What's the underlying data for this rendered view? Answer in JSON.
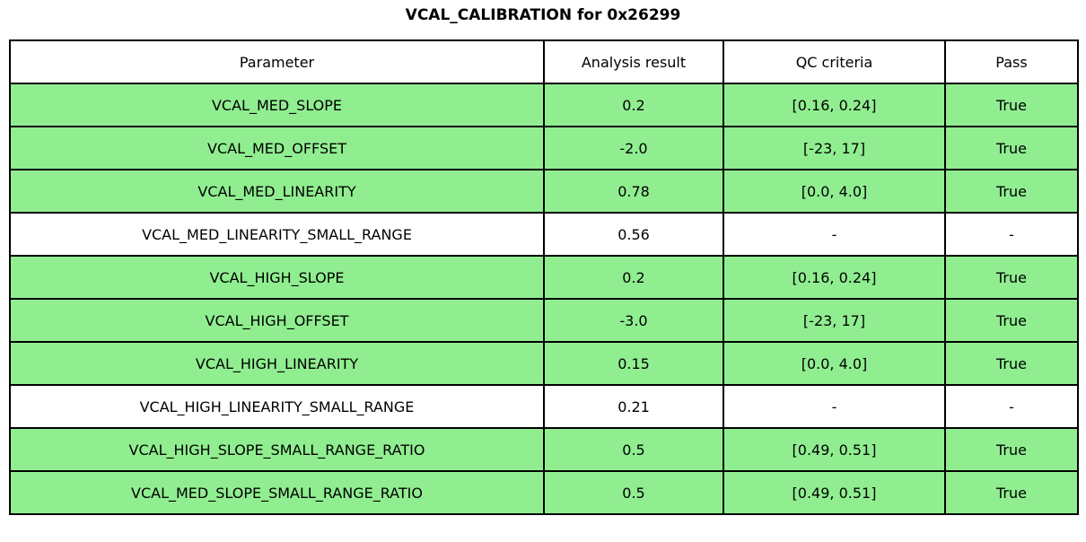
{
  "title": "VCAL_CALIBRATION for 0x26299",
  "colors": {
    "pass_row_green": "#90EE90",
    "neutral_row_white": "#FFFFFF",
    "grid_line": "#000000",
    "text": "#000000"
  },
  "chart_data": {
    "type": "table",
    "title": "VCAL_CALIBRATION for 0x26299",
    "columns": [
      "Parameter",
      "Analysis result",
      "QC criteria",
      "Pass"
    ],
    "rows": [
      {
        "parameter": "VCAL_MED_SLOPE",
        "analysis_result": "0.2",
        "qc_criteria": "[0.16, 0.24]",
        "pass": "True",
        "highlight": true
      },
      {
        "parameter": "VCAL_MED_OFFSET",
        "analysis_result": "-2.0",
        "qc_criteria": "[-23, 17]",
        "pass": "True",
        "highlight": true
      },
      {
        "parameter": "VCAL_MED_LINEARITY",
        "analysis_result": "0.78",
        "qc_criteria": "[0.0, 4.0]",
        "pass": "True",
        "highlight": true
      },
      {
        "parameter": "VCAL_MED_LINEARITY_SMALL_RANGE",
        "analysis_result": "0.56",
        "qc_criteria": "-",
        "pass": "-",
        "highlight": false
      },
      {
        "parameter": "VCAL_HIGH_SLOPE",
        "analysis_result": "0.2",
        "qc_criteria": "[0.16, 0.24]",
        "pass": "True",
        "highlight": true
      },
      {
        "parameter": "VCAL_HIGH_OFFSET",
        "analysis_result": "-3.0",
        "qc_criteria": "[-23, 17]",
        "pass": "True",
        "highlight": true
      },
      {
        "parameter": "VCAL_HIGH_LINEARITY",
        "analysis_result": "0.15",
        "qc_criteria": "[0.0, 4.0]",
        "pass": "True",
        "highlight": true
      },
      {
        "parameter": "VCAL_HIGH_LINEARITY_SMALL_RANGE",
        "analysis_result": "0.21",
        "qc_criteria": "-",
        "pass": "-",
        "highlight": false
      },
      {
        "parameter": "VCAL_HIGH_SLOPE_SMALL_RANGE_RATIO",
        "analysis_result": "0.5",
        "qc_criteria": "[0.49, 0.51]",
        "pass": "True",
        "highlight": true
      },
      {
        "parameter": "VCAL_MED_SLOPE_SMALL_RANGE_RATIO",
        "analysis_result": "0.5",
        "qc_criteria": "[0.49, 0.51]",
        "pass": "True",
        "highlight": true
      }
    ]
  }
}
